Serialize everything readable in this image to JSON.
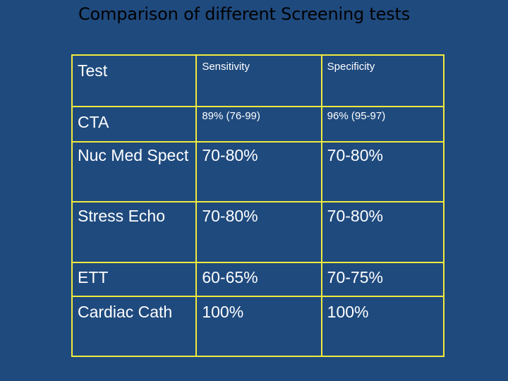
{
  "title": "Comparison of different Screening tests",
  "table": {
    "header": [
      "Test",
      "Sensitivity",
      "Specificity"
    ],
    "rows": [
      [
        "CTA",
        "89% (76-99)",
        "96% (95-97)"
      ],
      [
        "Nuc Med Spect",
        "70-80%",
        "70-80%"
      ],
      [
        "Stress Echo",
        "70-80%",
        "70-80%"
      ],
      [
        "ETT",
        "60-65%",
        "70-75%"
      ],
      [
        "Cardiac Cath",
        "100%",
        "100%"
      ]
    ]
  },
  "colors": {
    "background": "#1f4a7e",
    "title_text": "#000000",
    "grid_border": "#f2ea3c",
    "cell_text": "#ffffff"
  }
}
